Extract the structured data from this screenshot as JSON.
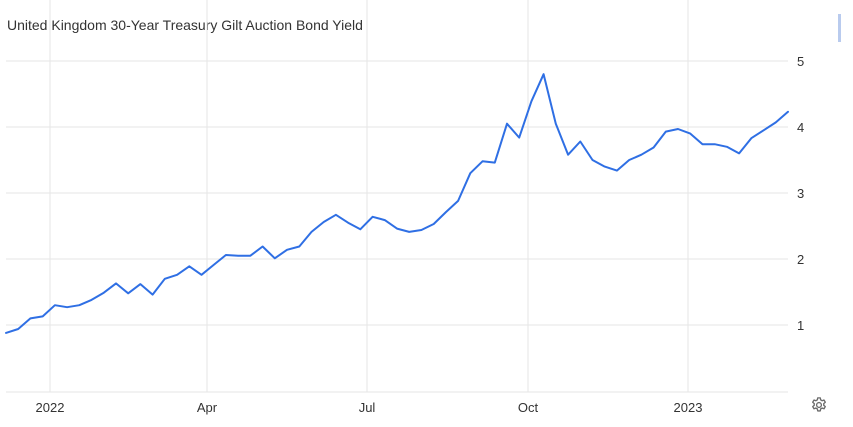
{
  "header": {
    "title": "United Kingdom 30-Year Treasury Gilt Auction Bond Yield"
  },
  "icons": {
    "settings": "gear-icon"
  },
  "colors": {
    "line": "#2f6fe4",
    "grid": "#e6e6e6",
    "axis_text": "#333333"
  },
  "chart_data": {
    "type": "line",
    "title": "United Kingdom 30-Year Treasury Gilt Auction Bond Yield",
    "xlabel": "",
    "ylabel": "",
    "x_tick_labels": [
      "2022",
      "Apr",
      "Jul",
      "Oct",
      "2023"
    ],
    "y_ticks": [
      1,
      2,
      3,
      4,
      5
    ],
    "ylim": [
      0.45,
      5.3
    ],
    "grid": true,
    "series": [
      {
        "values": [
          0.88,
          0.94,
          1.1,
          1.13,
          1.3,
          1.27,
          1.3,
          1.38,
          1.49,
          1.63,
          1.48,
          1.62,
          1.46,
          1.7,
          1.76,
          1.89,
          1.76,
          1.91,
          2.06,
          2.05,
          2.05,
          2.19,
          2.01,
          2.14,
          2.19,
          2.41,
          2.56,
          2.67,
          2.55,
          2.45,
          2.64,
          2.59,
          2.46,
          2.41,
          2.44,
          2.53,
          2.71,
          2.88,
          3.3,
          3.48,
          3.46,
          4.05,
          3.84,
          4.39,
          4.8,
          4.05,
          3.58,
          3.78,
          3.5,
          3.4,
          3.34,
          3.5,
          3.58,
          3.69,
          3.93,
          3.97,
          3.9,
          3.74,
          3.74,
          3.7,
          3.6,
          3.83,
          3.95,
          4.07,
          4.23
        ]
      }
    ]
  }
}
